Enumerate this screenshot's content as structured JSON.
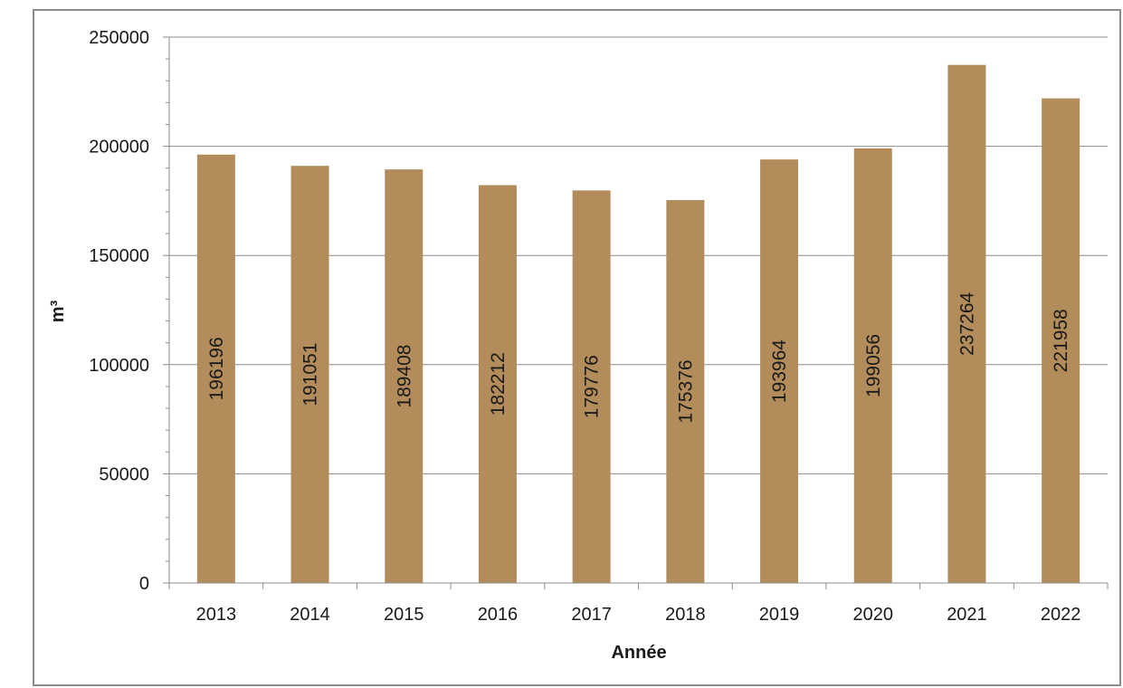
{
  "chart_data": {
    "type": "bar",
    "categories": [
      "2013",
      "2014",
      "2015",
      "2016",
      "2017",
      "2018",
      "2019",
      "2020",
      "2021",
      "2022"
    ],
    "values": [
      196196,
      191051,
      189408,
      182212,
      179776,
      175376,
      193964,
      199056,
      237264,
      221958
    ],
    "data_labels": [
      "196196",
      "191051",
      "189408",
      "182212",
      "179776",
      "175376",
      "193964",
      "199056",
      "237264",
      "221958"
    ],
    "xlabel": "Année",
    "ylabel": "m³",
    "ylim": [
      0,
      250000
    ],
    "y_ticks": [
      "0",
      "50000",
      "100000",
      "150000",
      "200000",
      "250000"
    ],
    "y_tick_values": [
      0,
      50000,
      100000,
      150000,
      200000,
      250000
    ],
    "grid": true,
    "legend": "none",
    "bar_color": "#B38C5B",
    "grid_color": "#8c8c8c"
  }
}
